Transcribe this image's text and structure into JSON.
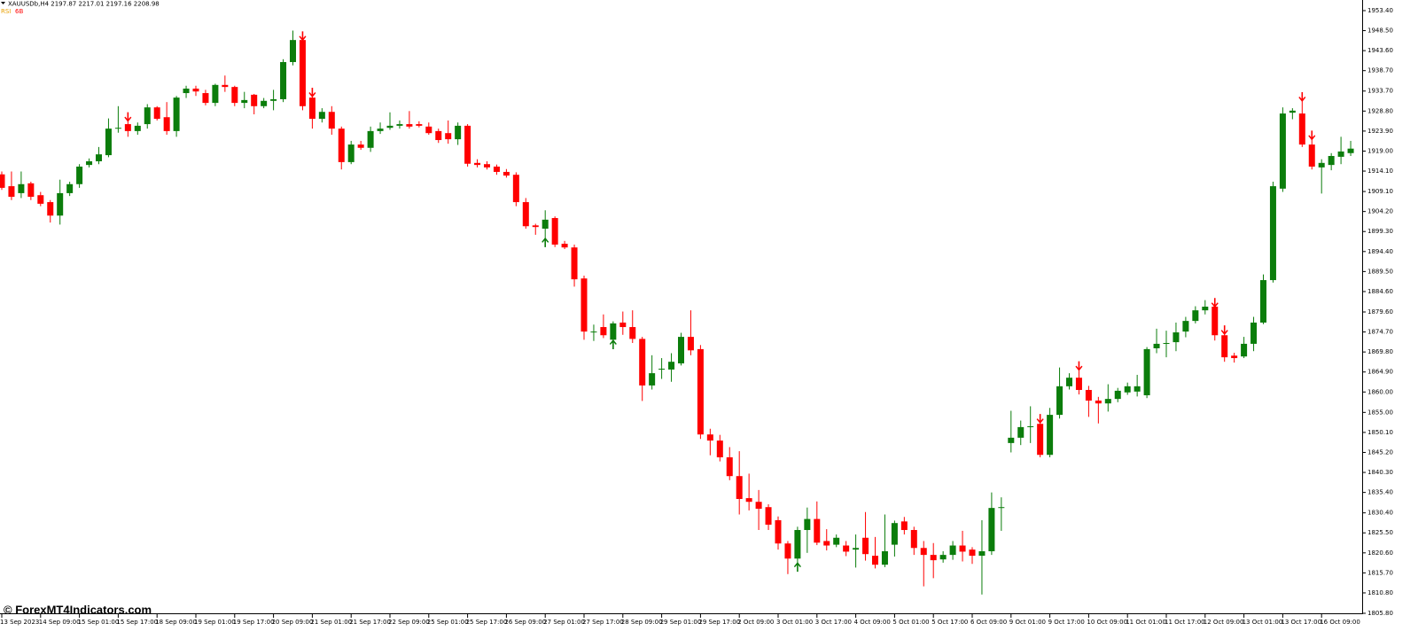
{
  "chart_data": {
    "type": "candlestick",
    "symbol_info": "XAUUSDb,H4 2197.87 2217.01 2197.16 2208.98",
    "indicator_labels": [
      {
        "text": "RSI",
        "color": "#e8a000"
      },
      {
        "text": "6B",
        "color": "#ff0000"
      }
    ],
    "watermark": "© ForexMT4Indicators.com",
    "up_color": "#0b7d0b",
    "down_color": "#ff0000",
    "buy_color": "#0b7d0b",
    "sell_color": "#ff0000",
    "ylim": [
      1805.8,
      1956.0
    ],
    "yticks": [
      {
        "value": 1953.4,
        "label": "1953.40"
      },
      {
        "value": 1948.5,
        "label": "1948.50"
      },
      {
        "value": 1943.6,
        "label": "1943.60"
      },
      {
        "value": 1938.7,
        "label": "1938.70"
      },
      {
        "value": 1933.7,
        "label": "1933.70"
      },
      {
        "value": 1928.8,
        "label": "1928.80"
      },
      {
        "value": 1923.9,
        "label": "1923.90"
      },
      {
        "value": 1919.0,
        "label": "1919.00"
      },
      {
        "value": 1914.1,
        "label": "1914.10"
      },
      {
        "value": 1909.1,
        "label": "1909.10"
      },
      {
        "value": 1904.2,
        "label": "1904.20"
      },
      {
        "value": 1899.3,
        "label": "1899.30"
      },
      {
        "value": 1894.4,
        "label": "1894.40"
      },
      {
        "value": 1889.5,
        "label": "1889.50"
      },
      {
        "value": 1884.6,
        "label": "1884.60"
      },
      {
        "value": 1879.6,
        "label": "1879.60"
      },
      {
        "value": 1874.7,
        "label": "1874.70"
      },
      {
        "value": 1869.8,
        "label": "1869.80"
      },
      {
        "value": 1864.9,
        "label": "1864.90"
      },
      {
        "value": 1860.0,
        "label": "1860.00"
      },
      {
        "value": 1855.0,
        "label": "1855.00"
      },
      {
        "value": 1850.1,
        "label": "1850.10"
      },
      {
        "value": 1845.2,
        "label": "1845.20"
      },
      {
        "value": 1840.3,
        "label": "1840.30"
      },
      {
        "value": 1835.4,
        "label": "1835.40"
      },
      {
        "value": 1830.4,
        "label": "1830.40"
      },
      {
        "value": 1825.5,
        "label": "1825.50"
      },
      {
        "value": 1820.6,
        "label": "1820.60"
      },
      {
        "value": 1815.7,
        "label": "1815.70"
      },
      {
        "value": 1810.8,
        "label": "1810.80"
      },
      {
        "value": 1805.8,
        "label": "1805.80"
      }
    ],
    "xticks": [
      {
        "value": 0,
        "label": "13 Sep 2023"
      },
      {
        "value": 4,
        "label": "14 Sep 09:00"
      },
      {
        "value": 8,
        "label": "15 Sep 01:00"
      },
      {
        "value": 12,
        "label": "15 Sep 17:00"
      },
      {
        "value": 16,
        "label": "18 Sep 09:00"
      },
      {
        "value": 20,
        "label": "19 Sep 01:00"
      },
      {
        "value": 24,
        "label": "19 Sep 17:00"
      },
      {
        "value": 28,
        "label": "20 Sep 09:00"
      },
      {
        "value": 32,
        "label": "21 Sep 01:00"
      },
      {
        "value": 36,
        "label": "21 Sep 17:00"
      },
      {
        "value": 40,
        "label": "22 Sep 09:00"
      },
      {
        "value": 44,
        "label": "25 Sep 01:00"
      },
      {
        "value": 48,
        "label": "25 Sep 17:00"
      },
      {
        "value": 52,
        "label": "26 Sep 09:00"
      },
      {
        "value": 56,
        "label": "27 Sep 01:00"
      },
      {
        "value": 60,
        "label": "27 Sep 17:00"
      },
      {
        "value": 64,
        "label": "28 Sep 09:00"
      },
      {
        "value": 68,
        "label": "29 Sep 01:00"
      },
      {
        "value": 72,
        "label": "29 Sep 17:00"
      },
      {
        "value": 76,
        "label": "2 Oct 09:00"
      },
      {
        "value": 80,
        "label": "3 Oct 01:00"
      },
      {
        "value": 84,
        "label": "3 Oct 17:00"
      },
      {
        "value": 88,
        "label": "4 Oct 09:00"
      },
      {
        "value": 92,
        "label": "5 Oct 01:00"
      },
      {
        "value": 96,
        "label": "5 Oct 17:00"
      },
      {
        "value": 100,
        "label": "6 Oct 09:00"
      },
      {
        "value": 104,
        "label": "9 Oct 01:00"
      },
      {
        "value": 108,
        "label": "9 Oct 17:00"
      },
      {
        "value": 112,
        "label": "10 Oct 09:00"
      },
      {
        "value": 116,
        "label": "11 Oct 01:00"
      },
      {
        "value": 120,
        "label": "11 Oct 17:00"
      },
      {
        "value": 124,
        "label": "12 Oct 09:00"
      },
      {
        "value": 128,
        "label": "13 Oct 01:00"
      },
      {
        "value": 132,
        "label": "13 Oct 17:00"
      },
      {
        "value": 136,
        "label": "16 Oct 09:00"
      }
    ],
    "candles": [
      {
        "o": 1913.3,
        "h": 1914,
        "l": 1909.5,
        "c": 1910.0
      },
      {
        "o": 1910.4,
        "h": 1914,
        "l": 1907,
        "c": 1907.8
      },
      {
        "o": 1908.7,
        "h": 1914,
        "l": 1907.5,
        "c": 1910.9
      },
      {
        "o": 1911.1,
        "h": 1911.5,
        "l": 1907,
        "c": 1907.8
      },
      {
        "o": 1908.2,
        "h": 1909,
        "l": 1905.5,
        "c": 1906.1
      },
      {
        "o": 1906.5,
        "h": 1907,
        "l": 1901.5,
        "c": 1903.2
      },
      {
        "o": 1903.2,
        "h": 1912,
        "l": 1901,
        "c": 1908.7
      },
      {
        "o": 1908.7,
        "h": 1911.5,
        "l": 1908,
        "c": 1910.9
      },
      {
        "o": 1910.9,
        "h": 1915.8,
        "l": 1910,
        "c": 1915.2
      },
      {
        "o": 1915.6,
        "h": 1917.2,
        "l": 1915,
        "c": 1916.5
      },
      {
        "o": 1916.5,
        "h": 1920,
        "l": 1915.8,
        "c": 1918.2
      },
      {
        "o": 1918.0,
        "h": 1927,
        "l": 1917.5,
        "c": 1924.5
      },
      {
        "o": 1924.5,
        "h": 1930,
        "l": 1923.5,
        "c": 1924.7
      },
      {
        "o": 1925.6,
        "h": 1927,
        "l": 1922.5,
        "c": 1923.9,
        "signal": "sell"
      },
      {
        "o": 1923.9,
        "h": 1926,
        "l": 1923,
        "c": 1925.2
      },
      {
        "o": 1925.6,
        "h": 1930.5,
        "l": 1924.5,
        "c": 1929.7
      },
      {
        "o": 1929.7,
        "h": 1930,
        "l": 1926.5,
        "c": 1926.9
      },
      {
        "o": 1927.3,
        "h": 1931,
        "l": 1923,
        "c": 1923.9
      },
      {
        "o": 1923.9,
        "h": 1932.5,
        "l": 1922.5,
        "c": 1932.1
      },
      {
        "o": 1933.2,
        "h": 1935,
        "l": 1932,
        "c": 1934.3
      },
      {
        "o": 1934.3,
        "h": 1935,
        "l": 1932.5,
        "c": 1933.6
      },
      {
        "o": 1933.2,
        "h": 1934,
        "l": 1930.2,
        "c": 1930.8
      },
      {
        "o": 1930.8,
        "h": 1935.5,
        "l": 1930,
        "c": 1935.2
      },
      {
        "o": 1935.2,
        "h": 1937.5,
        "l": 1933.5,
        "c": 1934.7
      },
      {
        "o": 1934.7,
        "h": 1935,
        "l": 1930,
        "c": 1930.8
      },
      {
        "o": 1930.8,
        "h": 1933.5,
        "l": 1929.5,
        "c": 1931.5
      },
      {
        "o": 1932.8,
        "h": 1933,
        "l": 1928,
        "c": 1930.0
      },
      {
        "o": 1930.0,
        "h": 1932,
        "l": 1929.5,
        "c": 1931.3
      },
      {
        "o": 1931.3,
        "h": 1934,
        "l": 1929,
        "c": 1931.7
      },
      {
        "o": 1931.7,
        "h": 1941.5,
        "l": 1931,
        "c": 1940.8
      },
      {
        "o": 1940.8,
        "h": 1948.5,
        "l": 1940,
        "c": 1946.2
      },
      {
        "o": 1946.2,
        "h": 1946.8,
        "l": 1929,
        "c": 1930.0,
        "signal": "sell"
      },
      {
        "o": 1932.1,
        "h": 1933,
        "l": 1924.5,
        "c": 1926.9,
        "signal": "sell"
      },
      {
        "o": 1926.9,
        "h": 1929.5,
        "l": 1926,
        "c": 1928.6
      },
      {
        "o": 1928.6,
        "h": 1930,
        "l": 1923,
        "c": 1924.5
      },
      {
        "o": 1924.5,
        "h": 1925,
        "l": 1914.5,
        "c": 1916.3
      },
      {
        "o": 1916.3,
        "h": 1921.5,
        "l": 1915.8,
        "c": 1920.6
      },
      {
        "o": 1920.6,
        "h": 1921.5,
        "l": 1919.3,
        "c": 1919.8
      },
      {
        "o": 1919.8,
        "h": 1925,
        "l": 1918.8,
        "c": 1923.9
      },
      {
        "o": 1923.9,
        "h": 1926,
        "l": 1923.2,
        "c": 1924.5
      },
      {
        "o": 1924.7,
        "h": 1928.5,
        "l": 1924.2,
        "c": 1925.2
      },
      {
        "o": 1925.2,
        "h": 1926.5,
        "l": 1924.5,
        "c": 1925.6
      },
      {
        "o": 1925.6,
        "h": 1928.8,
        "l": 1924.5,
        "c": 1925.0
      },
      {
        "o": 1925.6,
        "h": 1926.3,
        "l": 1924.8,
        "c": 1925.2
      },
      {
        "o": 1925.0,
        "h": 1926,
        "l": 1923,
        "c": 1923.4
      },
      {
        "o": 1923.9,
        "h": 1924.5,
        "l": 1921,
        "c": 1921.7
      },
      {
        "o": 1923.4,
        "h": 1926.5,
        "l": 1920.8,
        "c": 1921.9
      },
      {
        "o": 1921.9,
        "h": 1926,
        "l": 1920.5,
        "c": 1925.2
      },
      {
        "o": 1925.2,
        "h": 1925.6,
        "l": 1915.2,
        "c": 1915.9
      },
      {
        "o": 1916.1,
        "h": 1917,
        "l": 1915,
        "c": 1915.6
      },
      {
        "o": 1915.8,
        "h": 1916.5,
        "l": 1914.5,
        "c": 1915.0
      },
      {
        "o": 1915.2,
        "h": 1915.7,
        "l": 1913.2,
        "c": 1913.9
      },
      {
        "o": 1913.9,
        "h": 1914.6,
        "l": 1912.5,
        "c": 1913.0
      },
      {
        "o": 1913.2,
        "h": 1913.8,
        "l": 1905.5,
        "c": 1906.5
      },
      {
        "o": 1906.5,
        "h": 1907.5,
        "l": 1900,
        "c": 1900.6
      },
      {
        "o": 1900.8,
        "h": 1901.2,
        "l": 1898.5,
        "c": 1900.4
      },
      {
        "o": 1900.0,
        "h": 1904.5,
        "l": 1897,
        "c": 1902.2,
        "signal": "buy"
      },
      {
        "o": 1902.6,
        "h": 1903,
        "l": 1895.5,
        "c": 1896.1
      },
      {
        "o": 1896.3,
        "h": 1897,
        "l": 1895,
        "c": 1895.4
      },
      {
        "o": 1895.4,
        "h": 1896.1,
        "l": 1885.8,
        "c": 1887.6
      },
      {
        "o": 1887.8,
        "h": 1888.5,
        "l": 1872.8,
        "c": 1874.8
      },
      {
        "o": 1874.6,
        "h": 1876.5,
        "l": 1872.5,
        "c": 1874.8
      },
      {
        "o": 1875.9,
        "h": 1879,
        "l": 1873.2,
        "c": 1873.9
      },
      {
        "o": 1872.8,
        "h": 1877.3,
        "l": 1872,
        "c": 1876.8,
        "signal": "buy"
      },
      {
        "o": 1877.0,
        "h": 1879.7,
        "l": 1874,
        "c": 1875.9
      },
      {
        "o": 1875.9,
        "h": 1880,
        "l": 1872,
        "c": 1873.0
      },
      {
        "o": 1873.0,
        "h": 1873.5,
        "l": 1857.8,
        "c": 1861.6
      },
      {
        "o": 1861.6,
        "h": 1869,
        "l": 1860.6,
        "c": 1864.6
      },
      {
        "o": 1865.5,
        "h": 1868.3,
        "l": 1863.2,
        "c": 1865.7
      },
      {
        "o": 1865.5,
        "h": 1869.5,
        "l": 1862.5,
        "c": 1867.4
      },
      {
        "o": 1867.0,
        "h": 1874.5,
        "l": 1866.5,
        "c": 1873.5
      },
      {
        "o": 1873.5,
        "h": 1880,
        "l": 1869,
        "c": 1870.2
      },
      {
        "o": 1870.5,
        "h": 1871.5,
        "l": 1848.5,
        "c": 1849.6
      },
      {
        "o": 1849.6,
        "h": 1851,
        "l": 1844.5,
        "c": 1848.1
      },
      {
        "o": 1848.1,
        "h": 1849.5,
        "l": 1843,
        "c": 1844.0
      },
      {
        "o": 1844.0,
        "h": 1846.5,
        "l": 1838.4,
        "c": 1839.4
      },
      {
        "o": 1839.4,
        "h": 1845.5,
        "l": 1830,
        "c": 1833.8
      },
      {
        "o": 1834.0,
        "h": 1840,
        "l": 1831,
        "c": 1833.1
      },
      {
        "o": 1833.1,
        "h": 1836,
        "l": 1826.2,
        "c": 1831.4
      },
      {
        "o": 1831.8,
        "h": 1832.5,
        "l": 1826.2,
        "c": 1827.5
      },
      {
        "o": 1828.6,
        "h": 1829.5,
        "l": 1821.4,
        "c": 1822.9
      },
      {
        "o": 1822.9,
        "h": 1823.5,
        "l": 1815.4,
        "c": 1819.2
      },
      {
        "o": 1819.2,
        "h": 1827,
        "l": 1817.5,
        "c": 1826.2,
        "signal": "buy"
      },
      {
        "o": 1826.2,
        "h": 1831.7,
        "l": 1820.6,
        "c": 1828.9
      },
      {
        "o": 1828.9,
        "h": 1833.2,
        "l": 1822.5,
        "c": 1823.1
      },
      {
        "o": 1823.5,
        "h": 1826.4,
        "l": 1821.2,
        "c": 1822.4
      },
      {
        "o": 1822.6,
        "h": 1825.1,
        "l": 1822,
        "c": 1824.3
      },
      {
        "o": 1822.4,
        "h": 1823.5,
        "l": 1819.8,
        "c": 1820.9
      },
      {
        "o": 1821.4,
        "h": 1825.1,
        "l": 1817,
        "c": 1821.8
      },
      {
        "o": 1824.3,
        "h": 1830.6,
        "l": 1818.7,
        "c": 1820.3
      },
      {
        "o": 1819.9,
        "h": 1824.5,
        "l": 1816.8,
        "c": 1817.7
      },
      {
        "o": 1817.7,
        "h": 1830,
        "l": 1817.1,
        "c": 1821.0
      },
      {
        "o": 1822.6,
        "h": 1828.5,
        "l": 1819.7,
        "c": 1827.9
      },
      {
        "o": 1828.3,
        "h": 1829.4,
        "l": 1825.1,
        "c": 1826.2
      },
      {
        "o": 1826.2,
        "h": 1827,
        "l": 1820.1,
        "c": 1821.8
      },
      {
        "o": 1821.8,
        "h": 1823.5,
        "l": 1812.4,
        "c": 1820.1
      },
      {
        "o": 1820.1,
        "h": 1823,
        "l": 1814.4,
        "c": 1818.8
      },
      {
        "o": 1819.0,
        "h": 1821,
        "l": 1818.2,
        "c": 1820.1
      },
      {
        "o": 1820.1,
        "h": 1823.5,
        "l": 1818.9,
        "c": 1822.4
      },
      {
        "o": 1822.4,
        "h": 1826,
        "l": 1818.5,
        "c": 1820.9
      },
      {
        "o": 1821.4,
        "h": 1822,
        "l": 1817.9,
        "c": 1819.9
      },
      {
        "o": 1819.9,
        "h": 1828.6,
        "l": 1810.4,
        "c": 1821.0
      },
      {
        "o": 1821.0,
        "h": 1835.4,
        "l": 1820.1,
        "c": 1831.6
      },
      {
        "o": 1831.6,
        "h": 1834.2,
        "l": 1826,
        "c": 1831.8
      },
      {
        "o": 1847.5,
        "h": 1855.4,
        "l": 1845.2,
        "c": 1848.8
      },
      {
        "o": 1848.8,
        "h": 1853,
        "l": 1847,
        "c": 1851.4
      },
      {
        "o": 1851.4,
        "h": 1856.5,
        "l": 1847.5,
        "c": 1851.6
      },
      {
        "o": 1852.2,
        "h": 1853.1,
        "l": 1844,
        "c": 1844.6,
        "signal": "sell"
      },
      {
        "o": 1844.6,
        "h": 1856.1,
        "l": 1844,
        "c": 1854.4
      },
      {
        "o": 1854.4,
        "h": 1866,
        "l": 1853.5,
        "c": 1861.4
      },
      {
        "o": 1861.4,
        "h": 1864.6,
        "l": 1860.6,
        "c": 1863.5
      },
      {
        "o": 1863.5,
        "h": 1866,
        "l": 1859.4,
        "c": 1860.5,
        "signal": "sell"
      },
      {
        "o": 1860.5,
        "h": 1861.5,
        "l": 1853.9,
        "c": 1857.9
      },
      {
        "o": 1857.9,
        "h": 1858.8,
        "l": 1852.3,
        "c": 1857.2
      },
      {
        "o": 1857.2,
        "h": 1861.9,
        "l": 1855.2,
        "c": 1858.3
      },
      {
        "o": 1858.3,
        "h": 1861,
        "l": 1857.5,
        "c": 1860.3
      },
      {
        "o": 1859.9,
        "h": 1862.3,
        "l": 1859.3,
        "c": 1861.4
      },
      {
        "o": 1860.1,
        "h": 1864.2,
        "l": 1858.9,
        "c": 1861.4
      },
      {
        "o": 1859.2,
        "h": 1871,
        "l": 1858.5,
        "c": 1870.5
      },
      {
        "o": 1870.7,
        "h": 1875.5,
        "l": 1869.5,
        "c": 1871.8
      },
      {
        "o": 1871.8,
        "h": 1875,
        "l": 1868.5,
        "c": 1872.0
      },
      {
        "o": 1872.2,
        "h": 1877,
        "l": 1870,
        "c": 1874.6
      },
      {
        "o": 1874.8,
        "h": 1878.4,
        "l": 1873.4,
        "c": 1877.4
      },
      {
        "o": 1877.4,
        "h": 1881,
        "l": 1876.8,
        "c": 1880.0
      },
      {
        "o": 1880.0,
        "h": 1882.5,
        "l": 1879,
        "c": 1880.9
      },
      {
        "o": 1880.9,
        "h": 1881.5,
        "l": 1872.6,
        "c": 1873.9,
        "signal": "sell"
      },
      {
        "o": 1873.9,
        "h": 1874.8,
        "l": 1867.4,
        "c": 1868.5,
        "signal": "sell"
      },
      {
        "o": 1868.9,
        "h": 1869.6,
        "l": 1867.2,
        "c": 1868.3
      },
      {
        "o": 1868.7,
        "h": 1873.5,
        "l": 1868.3,
        "c": 1871.8
      },
      {
        "o": 1871.8,
        "h": 1878.4,
        "l": 1870,
        "c": 1877.0
      },
      {
        "o": 1877.0,
        "h": 1888.8,
        "l": 1876.6,
        "c": 1887.4
      },
      {
        "o": 1887.4,
        "h": 1911.5,
        "l": 1886.8,
        "c": 1910.4
      },
      {
        "o": 1909.8,
        "h": 1929.7,
        "l": 1909,
        "c": 1928.2
      },
      {
        "o": 1928.4,
        "h": 1929.5,
        "l": 1926.8,
        "c": 1928.9
      },
      {
        "o": 1928.2,
        "h": 1931.9,
        "l": 1920,
        "c": 1920.6,
        "signal": "sell"
      },
      {
        "o": 1920.6,
        "h": 1922.5,
        "l": 1914.5,
        "c": 1915.2,
        "signal": "sell"
      },
      {
        "o": 1915.0,
        "h": 1917,
        "l": 1908.6,
        "c": 1916.1
      },
      {
        "o": 1915.6,
        "h": 1918.5,
        "l": 1914.3,
        "c": 1917.8
      },
      {
        "o": 1917.6,
        "h": 1922.5,
        "l": 1915.8,
        "c": 1918.9
      },
      {
        "o": 1918.5,
        "h": 1921.5,
        "l": 1917.8,
        "c": 1919.6
      }
    ]
  }
}
